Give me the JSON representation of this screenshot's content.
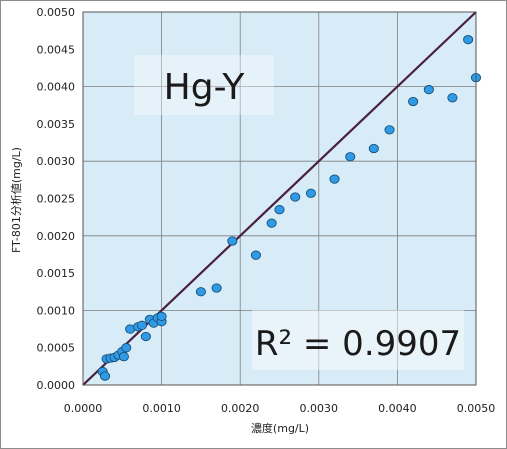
{
  "chart_data": {
    "type": "scatter",
    "title": "Hg-Y",
    "xlabel": "濃度(mg/L)",
    "ylabel": "FT-801分析値(mg/L)",
    "xlim": [
      0,
      0.005
    ],
    "ylim": [
      0,
      0.005
    ],
    "x_ticks": [
      "0.0000",
      "0.0010",
      "0.0020",
      "0.0030",
      "0.0040",
      "0.0050"
    ],
    "y_ticks": [
      "0.0000",
      "0.0005",
      "0.0010",
      "0.0015",
      "0.0020",
      "0.0025",
      "0.0030",
      "0.0035",
      "0.0040",
      "0.0045",
      "0.0050"
    ],
    "grid": true,
    "annotation": "R² = 0.9907",
    "reference_line": {
      "from": [
        0,
        0
      ],
      "to": [
        0.005,
        0.005
      ]
    },
    "colors": {
      "plot_bg": "#d7ecf6",
      "marker": "#2f9be6",
      "marker_edge": "#1a4f7a",
      "line": "#4a2040",
      "grid": "#7f7f7f"
    },
    "series": [
      {
        "points": [
          [
            0.00025,
            0.00018
          ],
          [
            0.00028,
            0.00012
          ],
          [
            0.0003,
            0.00035
          ],
          [
            0.00035,
            0.00036
          ],
          [
            0.0004,
            0.00037
          ],
          [
            0.00045,
            0.0004
          ],
          [
            0.0005,
            0.00045
          ],
          [
            0.00052,
            0.00038
          ],
          [
            0.00055,
            0.0005
          ],
          [
            0.0006,
            0.00075
          ],
          [
            0.0007,
            0.00078
          ],
          [
            0.00075,
            0.0008
          ],
          [
            0.0008,
            0.00065
          ],
          [
            0.00085,
            0.00088
          ],
          [
            0.0009,
            0.00083
          ],
          [
            0.00095,
            0.0009
          ],
          [
            0.001,
            0.00085
          ],
          [
            0.001,
            0.00092
          ],
          [
            0.0015,
            0.00125
          ],
          [
            0.0017,
            0.0013
          ],
          [
            0.0019,
            0.00193
          ],
          [
            0.0022,
            0.00174
          ],
          [
            0.0024,
            0.00217
          ],
          [
            0.0025,
            0.00235
          ],
          [
            0.0027,
            0.00252
          ],
          [
            0.0029,
            0.00257
          ],
          [
            0.0032,
            0.00276
          ],
          [
            0.0034,
            0.00306
          ],
          [
            0.0037,
            0.00317
          ],
          [
            0.0039,
            0.00342
          ],
          [
            0.0042,
            0.0038
          ],
          [
            0.0044,
            0.00396
          ],
          [
            0.0047,
            0.00385
          ],
          [
            0.0049,
            0.00463
          ],
          [
            0.005,
            0.00412
          ]
        ]
      }
    ]
  }
}
